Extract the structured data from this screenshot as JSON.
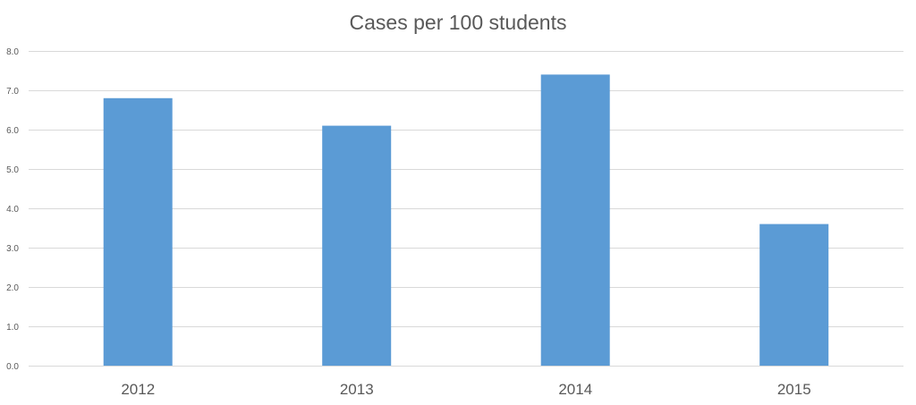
{
  "chart_data": {
    "type": "bar",
    "title": "Cases per 100 students",
    "categories": [
      "2012",
      "2013",
      "2014",
      "2015"
    ],
    "values": [
      6.8,
      6.1,
      7.4,
      3.6
    ],
    "ylim": [
      0,
      8
    ],
    "yticks": [
      "0.0",
      "1.0",
      "2.0",
      "3.0",
      "4.0",
      "5.0",
      "6.0",
      "7.0",
      "8.0"
    ],
    "grid": true,
    "legend": "none",
    "bar_color": "#5b9bd5",
    "xlabel": "",
    "ylabel": ""
  }
}
